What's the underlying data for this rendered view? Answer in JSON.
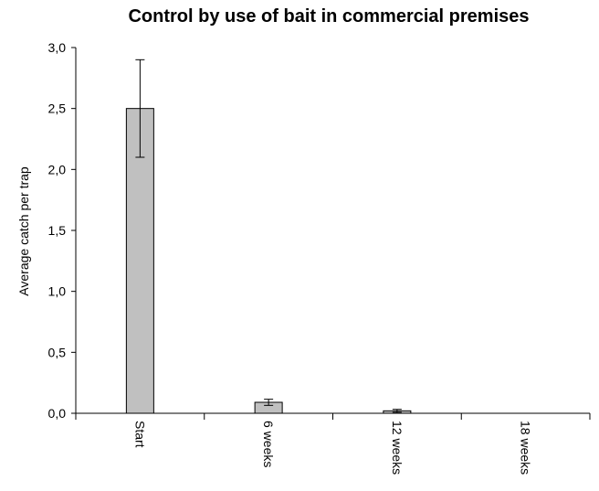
{
  "chart_data": {
    "type": "bar",
    "title": "Control by use of bait in commercial premises",
    "xlabel": "",
    "ylabel": "Average catch per trap",
    "categories": [
      "Start",
      "6 weeks",
      "12 weeks",
      "18 weeks"
    ],
    "values": [
      2.5,
      0.09,
      0.02,
      0.0
    ],
    "error": [
      0.4,
      0.025,
      0.012,
      0.0
    ],
    "ylim": [
      0,
      3
    ],
    "yticks": [
      0,
      0.5,
      1.0,
      1.5,
      2.0,
      2.5,
      3.0
    ],
    "ytick_labels": [
      "0,0",
      "0,5",
      "1,0",
      "1,5",
      "2,0",
      "2,5",
      "3,0"
    ],
    "grid": false,
    "legend": "none",
    "colors": {
      "bar_fill": "#c0c0c0",
      "bar_stroke": "#000000",
      "axis": "#000000"
    }
  }
}
